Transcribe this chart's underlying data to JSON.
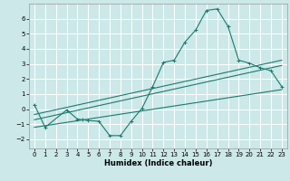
{
  "xlabel": "Humidex (Indice chaleur)",
  "background_color": "#cce8e8",
  "grid_color": "#ffffff",
  "line_color": "#1a7a6e",
  "xlim": [
    -0.5,
    23.5
  ],
  "ylim": [
    -2.6,
    7.0
  ],
  "xticks": [
    0,
    1,
    2,
    3,
    4,
    5,
    6,
    7,
    8,
    9,
    10,
    11,
    12,
    13,
    14,
    15,
    16,
    17,
    18,
    19,
    20,
    21,
    22,
    23
  ],
  "yticks": [
    -2,
    -1,
    0,
    1,
    2,
    3,
    4,
    5,
    6
  ],
  "main_line_x": [
    0,
    1,
    3,
    4,
    4.5,
    5,
    6,
    7,
    8,
    9,
    10,
    11,
    12,
    13,
    14,
    15,
    16,
    17,
    18,
    19,
    20,
    21,
    22,
    23
  ],
  "main_line_y": [
    0.3,
    -1.2,
    -0.05,
    -0.65,
    -0.7,
    -0.75,
    -0.8,
    -1.75,
    -1.75,
    -0.8,
    0.05,
    1.5,
    3.1,
    3.25,
    4.45,
    5.25,
    6.55,
    6.65,
    5.5,
    3.25,
    3.05,
    2.75,
    2.55,
    1.5
  ],
  "line2_x": [
    0,
    23
  ],
  "line2_y": [
    -0.35,
    3.25
  ],
  "line3_x": [
    0,
    23
  ],
  "line3_y": [
    -0.7,
    2.9
  ],
  "line4_x": [
    0,
    23
  ],
  "line4_y": [
    -1.2,
    1.3
  ]
}
